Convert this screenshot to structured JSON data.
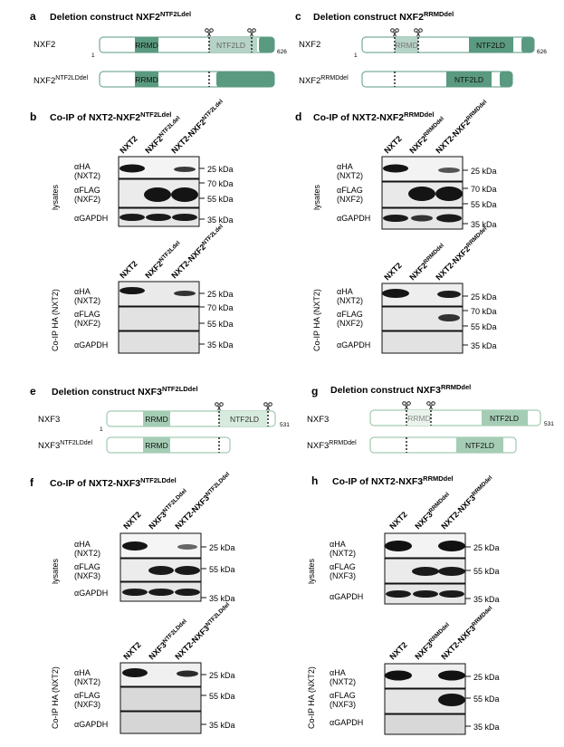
{
  "panels": {
    "a": {
      "letter": "a",
      "title": "Deletion construct NXF2",
      "title_sup": "NTF2Ldel",
      "row1_label": "NXF2",
      "row1_start": "1",
      "row1_end": "626",
      "row2_label": "NXF2",
      "row2_label_sup": "NTF2LDdel",
      "domain1": "RRMD",
      "domain2": "NTF2LD",
      "colors": {
        "dark": "#5a9a80",
        "light": "#b5d3c6",
        "outline": "#5a9a80"
      }
    },
    "b": {
      "letter": "b",
      "title": "Co-IP of NXT2-NXF2",
      "title_sup": "NTF2Ldel",
      "lanes": [
        {
          "base": "NXT2",
          "sup": ""
        },
        {
          "base": "NXF2",
          "sup": "NTF2Ldel"
        },
        {
          "base": "NXT2-NXF2",
          "sup": "NTF2Ldel"
        }
      ],
      "group_top": "lysates",
      "group_bottom": "Co-IP HA (NXT2)",
      "rows": [
        {
          "ab": "αHA",
          "target": "(NXT2)",
          "marker": "25 kDa"
        },
        {
          "ab": "αFLAG",
          "target": "(NXF2)",
          "marker_top": "70 kDa",
          "marker": "55 kDa"
        },
        {
          "ab": "αGAPDH",
          "target": "",
          "marker": "35 kDa"
        }
      ]
    },
    "c": {
      "letter": "c",
      "title": "Deletion construct NXF2",
      "title_sup": "RRMDdel",
      "row1_label": "NXF2",
      "row1_start": "1",
      "row1_end": "626",
      "row2_label": "NXF2",
      "row2_label_sup": "RRMDdel",
      "domain1": "RRMD",
      "domain2": "NTF2LD"
    },
    "d": {
      "letter": "d",
      "title": "Co-IP of NXT2-NXF2",
      "title_sup": "RRMDdel",
      "lanes": [
        {
          "base": "NXT2",
          "sup": ""
        },
        {
          "base": "NXF2",
          "sup": "RRMDdel"
        },
        {
          "base": "NXT2-NXF2",
          "sup": "RRMDdel"
        }
      ],
      "group_top": "lysates",
      "group_bottom": "Co-IP HA (NXT2)"
    },
    "e": {
      "letter": "e",
      "title": "Deletion construct NXF3",
      "title_sup": "NTF2LDdel",
      "row1_label": "NXF3",
      "row1_start": "1",
      "row1_end": "531",
      "row2_label": "NXF3",
      "row2_label_sup": "NTF2LDdel",
      "domain1": "RRMD",
      "domain2": "NTF2LD",
      "colors": {
        "dark": "#a5cdb5",
        "light": "#d6ebdd",
        "outline": "#8cbf9f"
      }
    },
    "f": {
      "letter": "f",
      "title": "Co-IP of NXT2-NXF3",
      "title_sup": "NTF2LDdel",
      "lanes": [
        {
          "base": "NXT2",
          "sup": ""
        },
        {
          "base": "NXF3",
          "sup": "NTF2LDdel"
        },
        {
          "base": "NXT2-NXF3",
          "sup": "NTF2LDdel"
        }
      ],
      "group_top": "lysates",
      "group_bottom": "Co-IP HA (NXT2)",
      "rows": [
        {
          "ab": "αHA",
          "target": "(NXT2)",
          "marker": "25 kDa"
        },
        {
          "ab": "αFLAG",
          "target": "(NXF3)",
          "marker": "55 kDa"
        },
        {
          "ab": "αGAPDH",
          "target": "",
          "marker": "35 kDa"
        }
      ]
    },
    "g": {
      "letter": "g",
      "title": "Deletion construct NXF3",
      "title_sup": "RRMDdel",
      "row1_label": "NXF3",
      "row1_start": "1",
      "row1_end": "531",
      "row2_label": "NXF3",
      "row2_label_sup": "RRMDdel",
      "domain1": "RRMD",
      "domain2": "NTF2LD"
    },
    "h": {
      "letter": "h",
      "title": "Co-IP of NXT2-NXF3",
      "title_sup": "RRMDdel",
      "lanes": [
        {
          "base": "NXT2",
          "sup": ""
        },
        {
          "base": "NXF3",
          "sup": "RRMDdel"
        },
        {
          "base": "NXT2-NXF3",
          "sup": "RRMDdel"
        }
      ],
      "group_top": "lysates",
      "group_bottom": "Co-IP HA (NXT2)"
    }
  }
}
